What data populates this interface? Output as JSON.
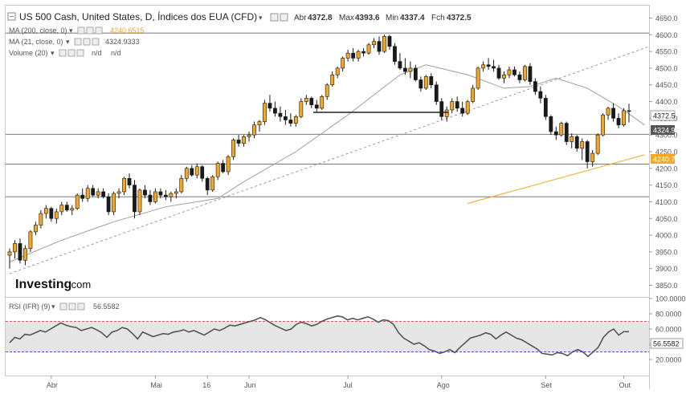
{
  "header": {
    "title": "US 500 Cash, United States, D, Índices dos EUA (CFD)",
    "open_label": "Abr",
    "open": "4372.8",
    "high_label": "Max",
    "high": "4393.6",
    "low_label": "Min",
    "low": "4337.4",
    "close_label": "Fch",
    "close": "4372.5"
  },
  "indicators": {
    "ma200": {
      "label": "MA (200, close, 0)",
      "value": "4240.6515",
      "color": "#f5a623"
    },
    "ma21": {
      "label": "MA (21, close, 0)",
      "value": "4324.9333",
      "color": "#9e9e9e"
    },
    "volume": {
      "label": "Volume (20)",
      "v1": "n/d",
      "v2": "n/d"
    },
    "rsi": {
      "label": "RSI (IFR) (9)",
      "value": "56.5582"
    }
  },
  "logo": {
    "brand": "Investing",
    "suffix": ".com"
  },
  "price_badges": {
    "last": "4372.5",
    "ma21": "4324.9",
    "ma200": "4240.7"
  },
  "rsi_badge": "56.5582",
  "colors": {
    "up": "#f5a623",
    "down": "#1a1a1a",
    "ma200": "#f5a623",
    "ma21": "#9e9e9e",
    "rsi": "#555555",
    "rsi_band": "#e6e6e6"
  },
  "chart_data": [
    {
      "type": "candlestick",
      "ylim": [
        3820,
        4680
      ],
      "yticks": [
        "4650.0",
        "4600.0",
        "4550.0",
        "4500.0",
        "4450.0",
        "4400.0",
        "4350.0",
        "4300.0",
        "4250.0",
        "4200.0",
        "4150.0",
        "4100.0",
        "4050.0",
        "4000.0",
        "3950.0",
        "3900.0",
        "3850.0"
      ],
      "xticks": [
        "Abr",
        "Mai",
        "16",
        "Jun",
        "Jul",
        "Ago",
        "Set",
        "Out"
      ],
      "horizontal_levels": [
        4605,
        4302,
        4213,
        4115
      ],
      "candles": [
        [
          3940,
          3960,
          3900,
          3950
        ],
        [
          3950,
          3985,
          3930,
          3975
        ],
        [
          3975,
          3990,
          3915,
          3925
        ],
        [
          3925,
          3970,
          3910,
          3960
        ],
        [
          3960,
          4015,
          3950,
          4010
        ],
        [
          4010,
          4040,
          4000,
          4030
        ],
        [
          4030,
          4075,
          4020,
          4065
        ],
        [
          4065,
          4090,
          4050,
          4080
        ],
        [
          4080,
          4085,
          4040,
          4050
        ],
        [
          4050,
          4080,
          4035,
          4070
        ],
        [
          4070,
          4100,
          4060,
          4090
        ],
        [
          4090,
          4100,
          4070,
          4075
        ],
        [
          4075,
          4090,
          4060,
          4080
        ],
        [
          4080,
          4125,
          4075,
          4120
        ],
        [
          4120,
          4140,
          4100,
          4110
        ],
        [
          4110,
          4150,
          4100,
          4140
        ],
        [
          4140,
          4150,
          4115,
          4120
        ],
        [
          4120,
          4140,
          4110,
          4130
        ],
        [
          4130,
          4140,
          4110,
          4115
        ],
        [
          4115,
          4125,
          4060,
          4070
        ],
        [
          4070,
          4130,
          4060,
          4125
        ],
        [
          4125,
          4140,
          4110,
          4130
        ],
        [
          4130,
          4175,
          4120,
          4170
        ],
        [
          4170,
          4185,
          4140,
          4150
        ],
        [
          4150,
          4165,
          4050,
          4070
        ],
        [
          4070,
          4140,
          4060,
          4135
        ],
        [
          4135,
          4150,
          4110,
          4120
        ],
        [
          4120,
          4135,
          4090,
          4100
        ],
        [
          4100,
          4140,
          4095,
          4130
        ],
        [
          4130,
          4140,
          4110,
          4120
        ],
        [
          4120,
          4135,
          4105,
          4115
        ],
        [
          4115,
          4130,
          4100,
          4125
        ],
        [
          4125,
          4140,
          4110,
          4130
        ],
        [
          4130,
          4180,
          4125,
          4170
        ],
        [
          4170,
          4205,
          4160,
          4200
        ],
        [
          4200,
          4210,
          4175,
          4180
        ],
        [
          4180,
          4215,
          4170,
          4205
        ],
        [
          4205,
          4210,
          4160,
          4170
        ],
        [
          4170,
          4175,
          4120,
          4135
        ],
        [
          4135,
          4180,
          4130,
          4175
        ],
        [
          4175,
          4220,
          4165,
          4215
        ],
        [
          4215,
          4225,
          4185,
          4190
        ],
        [
          4190,
          4240,
          4180,
          4235
        ],
        [
          4235,
          4290,
          4225,
          4285
        ],
        [
          4285,
          4300,
          4265,
          4275
        ],
        [
          4275,
          4300,
          4265,
          4295
        ],
        [
          4295,
          4310,
          4280,
          4300
        ],
        [
          4300,
          4340,
          4290,
          4330
        ],
        [
          4330,
          4345,
          4310,
          4340
        ],
        [
          4340,
          4405,
          4330,
          4395
        ],
        [
          4395,
          4420,
          4370,
          4380
        ],
        [
          4380,
          4400,
          4355,
          4365
        ],
        [
          4365,
          4385,
          4340,
          4355
        ],
        [
          4355,
          4375,
          4330,
          4345
        ],
        [
          4345,
          4365,
          4325,
          4335
        ],
        [
          4335,
          4360,
          4325,
          4355
        ],
        [
          4355,
          4410,
          4350,
          4400
        ],
        [
          4400,
          4420,
          4390,
          4410
        ],
        [
          4410,
          4415,
          4380,
          4390
        ],
        [
          4390,
          4405,
          4370,
          4380
        ],
        [
          4380,
          4420,
          4375,
          4415
        ],
        [
          4415,
          4455,
          4405,
          4450
        ],
        [
          4450,
          4490,
          4445,
          4480
        ],
        [
          4480,
          4505,
          4470,
          4500
        ],
        [
          4500,
          4535,
          4490,
          4530
        ],
        [
          4530,
          4555,
          4520,
          4545
        ],
        [
          4545,
          4560,
          4520,
          4530
        ],
        [
          4530,
          4555,
          4520,
          4550
        ],
        [
          4550,
          4560,
          4535,
          4545
        ],
        [
          4545,
          4575,
          4540,
          4570
        ],
        [
          4570,
          4590,
          4560,
          4580
        ],
        [
          4580,
          4595,
          4540,
          4550
        ],
        [
          4550,
          4600,
          4545,
          4595
        ],
        [
          4595,
          4600,
          4555,
          4565
        ],
        [
          4565,
          4575,
          4510,
          4520
        ],
        [
          4520,
          4545,
          4495,
          4500
        ],
        [
          4500,
          4530,
          4480,
          4490
        ],
        [
          4490,
          4520,
          4470,
          4500
        ],
        [
          4500,
          4510,
          4460,
          4465
        ],
        [
          4465,
          4475,
          4430,
          4440
        ],
        [
          4440,
          4480,
          4435,
          4475
        ],
        [
          4475,
          4485,
          4440,
          4450
        ],
        [
          4450,
          4460,
          4390,
          4400
        ],
        [
          4400,
          4410,
          4345,
          4355
        ],
        [
          4355,
          4385,
          4340,
          4375
        ],
        [
          4375,
          4410,
          4365,
          4400
        ],
        [
          4400,
          4415,
          4370,
          4380
        ],
        [
          4380,
          4400,
          4355,
          4365
        ],
        [
          4365,
          4405,
          4360,
          4400
        ],
        [
          4400,
          4450,
          4395,
          4440
        ],
        [
          4440,
          4505,
          4435,
          4500
        ],
        [
          4500,
          4520,
          4490,
          4510
        ],
        [
          4510,
          4530,
          4495,
          4505
        ],
        [
          4505,
          4525,
          4490,
          4500
        ],
        [
          4500,
          4510,
          4465,
          4470
        ],
        [
          4470,
          4490,
          4455,
          4480
        ],
        [
          4480,
          4505,
          4470,
          4495
        ],
        [
          4495,
          4505,
          4475,
          4480
        ],
        [
          4480,
          4490,
          4455,
          4465
        ],
        [
          4465,
          4510,
          4460,
          4505
        ],
        [
          4505,
          4515,
          4450,
          4460
        ],
        [
          4460,
          4470,
          4420,
          4430
        ],
        [
          4430,
          4445,
          4395,
          4410
        ],
        [
          4410,
          4420,
          4345,
          4355
        ],
        [
          4355,
          4360,
          4300,
          4310
        ],
        [
          4310,
          4325,
          4285,
          4300
        ],
        [
          4300,
          4340,
          4295,
          4335
        ],
        [
          4335,
          4340,
          4270,
          4280
        ],
        [
          4280,
          4305,
          4260,
          4295
        ],
        [
          4295,
          4300,
          4250,
          4260
        ],
        [
          4260,
          4290,
          4225,
          4280
        ],
        [
          4280,
          4285,
          4200,
          4220
        ],
        [
          4220,
          4255,
          4205,
          4245
        ],
        [
          4245,
          4305,
          4240,
          4300
        ],
        [
          4300,
          4365,
          4295,
          4360
        ],
        [
          4360,
          4385,
          4345,
          4380
        ],
        [
          4380,
          4395,
          4340,
          4350
        ],
        [
          4350,
          4365,
          4320,
          4330
        ],
        [
          4330,
          4380,
          4325,
          4372.8
        ],
        [
          4372.8,
          4393.6,
          4337.4,
          4372.5
        ]
      ],
      "ma21": [
        [
          0,
          3920
        ],
        [
          10,
          3985
        ],
        [
          20,
          4040
        ],
        [
          30,
          4085
        ],
        [
          40,
          4110
        ],
        [
          45,
          4160
        ],
        [
          55,
          4250
        ],
        [
          65,
          4360
        ],
        [
          75,
          4480
        ],
        [
          80,
          4510
        ],
        [
          88,
          4480
        ],
        [
          95,
          4440
        ],
        [
          100,
          4445
        ],
        [
          105,
          4470
        ],
        [
          111,
          4440
        ],
        [
          117,
          4385
        ],
        [
          122,
          4330
        ]
      ],
      "ma200": [
        [
          88,
          4095
        ],
        [
          122,
          4240.7
        ]
      ],
      "trendline": [
        [
          0,
          3885
        ],
        [
          122,
          4560
        ],
        [
          124,
          4580
        ]
      ]
    },
    {
      "type": "line",
      "title": "RSI (IFR) (9)",
      "ylim": [
        0,
        100
      ],
      "yticks": [
        "100.0000",
        "80.0000",
        "60.0000",
        "40.0000",
        "20.0000"
      ],
      "levels": [
        70,
        30
      ],
      "values": [
        42,
        49,
        47,
        53,
        52,
        55,
        58,
        56,
        60,
        64,
        68,
        65,
        63,
        62,
        58,
        60,
        62,
        59,
        55,
        49,
        56,
        58,
        62,
        60,
        54,
        47,
        56,
        53,
        50,
        52,
        54,
        53,
        56,
        57,
        59,
        56,
        58,
        55,
        52,
        56,
        60,
        58,
        61,
        65,
        64,
        66,
        68,
        70,
        72,
        75,
        72,
        68,
        64,
        61,
        58,
        60,
        66,
        69,
        67,
        64,
        66,
        70,
        73,
        75,
        77,
        76,
        72,
        74,
        72,
        74,
        76,
        73,
        69,
        72,
        71,
        66,
        55,
        48,
        44,
        40,
        42,
        38,
        33,
        31,
        28,
        30,
        33,
        29,
        36,
        42,
        48,
        50,
        52,
        55,
        53,
        47,
        52,
        56,
        52,
        48,
        46,
        42,
        38,
        34,
        28,
        27,
        26,
        29,
        28,
        25,
        30,
        33,
        30,
        24,
        30,
        36,
        49,
        56,
        60,
        52,
        56.5582,
        56.5582
      ]
    }
  ]
}
